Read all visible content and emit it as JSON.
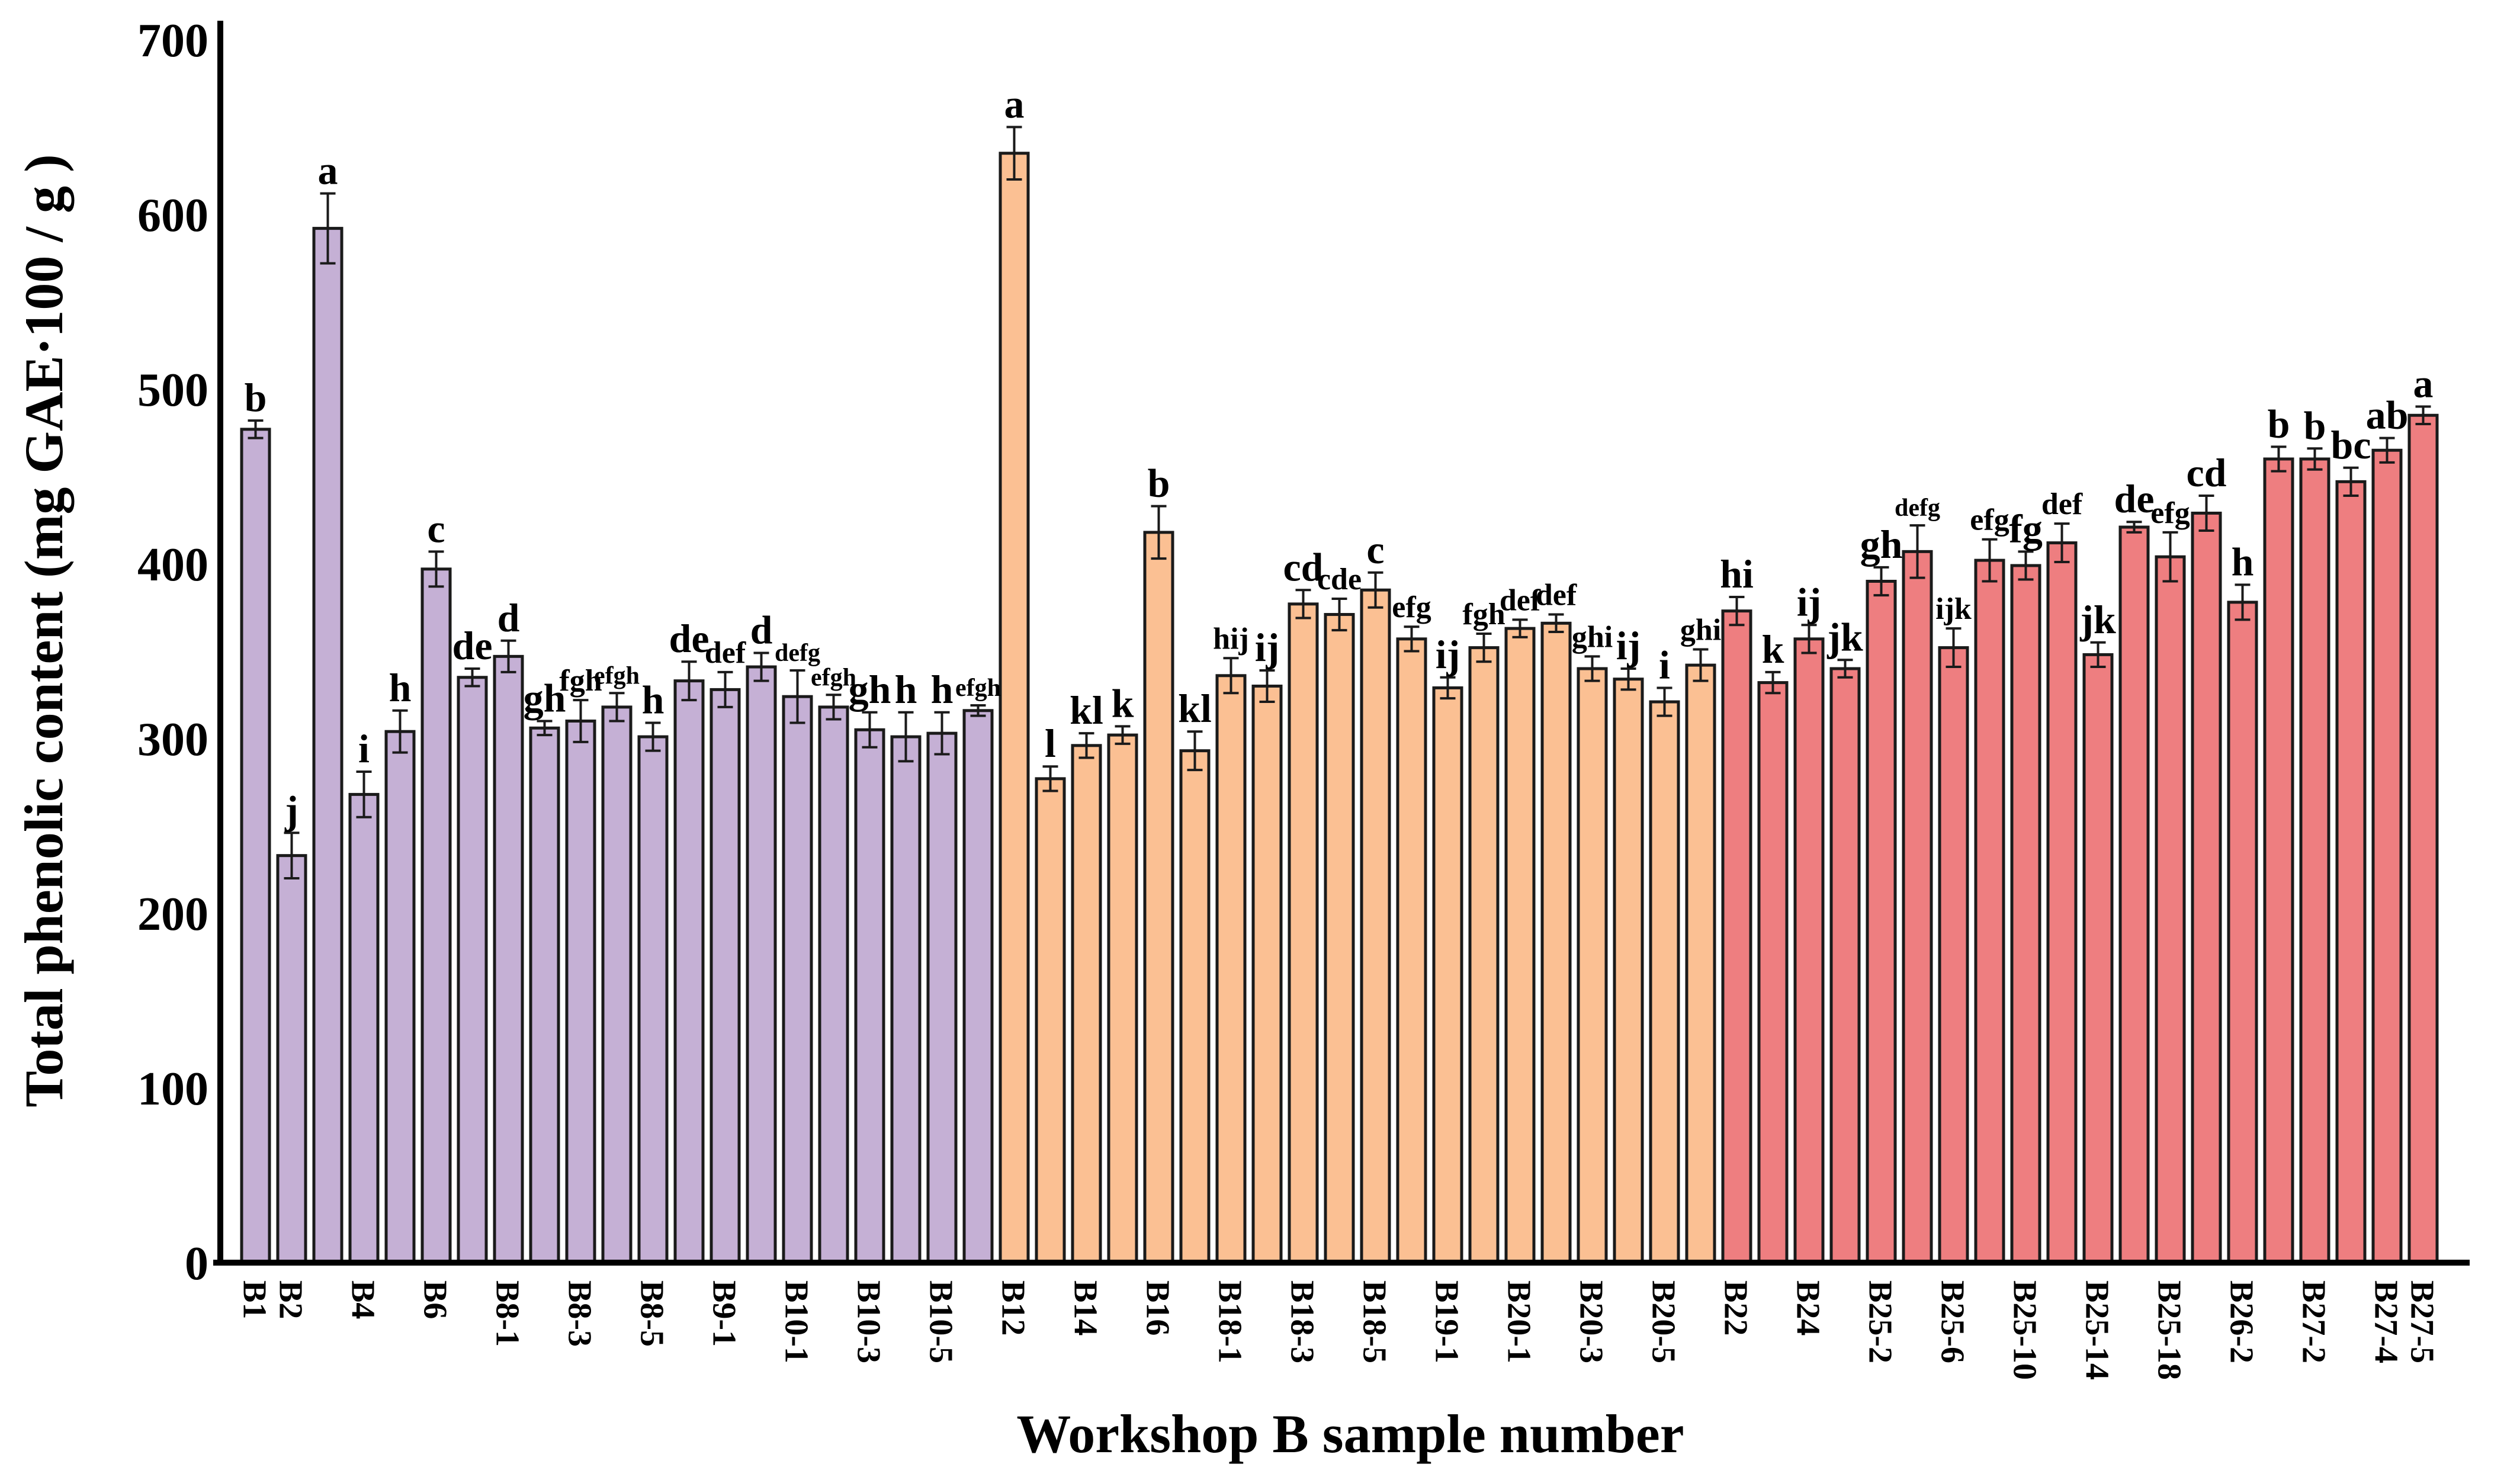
{
  "chart_data": {
    "type": "bar",
    "title": "",
    "xlabel": "Workshop B sample number",
    "ylabel": "Total phenolic content (mg GAE·100 / g )",
    "ylim": [
      0,
      700
    ],
    "y_ticks": [
      0,
      100,
      200,
      300,
      400,
      500,
      600,
      700
    ],
    "grid": false,
    "legend": "none",
    "axis_color": "#000000",
    "bar_outline_color": "#1a1a1a",
    "error_bar_color": "#1a1a1a",
    "groups": [
      {
        "name": "workshop-b-group-1",
        "color": "#c5b0d5",
        "bars": [
          {
            "label": "B1",
            "value": 477,
            "error": 5,
            "letter": "b"
          },
          {
            "label": "B2",
            "value": 233,
            "error": 13,
            "letter": "j"
          },
          {
            "label": "",
            "value": 592,
            "error": 20,
            "letter": "a"
          },
          {
            "label": "B4",
            "value": 268,
            "error": 13,
            "letter": "i"
          },
          {
            "label": "",
            "value": 304,
            "error": 12,
            "letter": "h"
          },
          {
            "label": "B6",
            "value": 397,
            "error": 10,
            "letter": "c"
          },
          {
            "label": "",
            "value": 335,
            "error": 5,
            "letter": "de"
          },
          {
            "label": "B8-1",
            "value": 347,
            "error": 9,
            "letter": "d"
          },
          {
            "label": "",
            "value": 306,
            "error": 4,
            "letter": "gh"
          },
          {
            "label": "B8-3",
            "value": 310,
            "error": 12,
            "letter": "fgh"
          },
          {
            "label": "",
            "value": 318,
            "error": 8,
            "letter": "efgh"
          },
          {
            "label": "B8-5",
            "value": 301,
            "error": 8,
            "letter": "h"
          },
          {
            "label": "",
            "value": 333,
            "error": 11,
            "letter": "de"
          },
          {
            "label": "B9-1",
            "value": 328,
            "error": 10,
            "letter": "def"
          },
          {
            "label": "",
            "value": 341,
            "error": 8,
            "letter": "d"
          },
          {
            "label": "B10-1",
            "value": 324,
            "error": 15,
            "letter": "defg"
          },
          {
            "label": "",
            "value": 318,
            "error": 7,
            "letter": "efgh"
          },
          {
            "label": "B10-3",
            "value": 305,
            "error": 10,
            "letter": "gh"
          },
          {
            "label": "",
            "value": 301,
            "error": 14,
            "letter": "h"
          },
          {
            "label": "B10-5",
            "value": 303,
            "error": 12,
            "letter": "h"
          },
          {
            "label": "",
            "value": 316,
            "error": 3,
            "letter": "efgh"
          }
        ]
      },
      {
        "name": "workshop-b-group-2",
        "color": "#fbc093",
        "bars": [
          {
            "label": "B12",
            "value": 635,
            "error": 15,
            "letter": "a"
          },
          {
            "label": "",
            "value": 277,
            "error": 7,
            "letter": "l"
          },
          {
            "label": "B14",
            "value": 296,
            "error": 7,
            "letter": "kl"
          },
          {
            "label": "",
            "value": 302,
            "error": 5,
            "letter": "k"
          },
          {
            "label": "B16",
            "value": 418,
            "error": 15,
            "letter": "b"
          },
          {
            "label": "",
            "value": 293,
            "error": 11,
            "letter": "kl"
          },
          {
            "label": "B18-1",
            "value": 336,
            "error": 10,
            "letter": "hij"
          },
          {
            "label": "",
            "value": 330,
            "error": 9,
            "letter": "ij"
          },
          {
            "label": "B18-3",
            "value": 377,
            "error": 8,
            "letter": "cd"
          },
          {
            "label": "",
            "value": 371,
            "error": 9,
            "letter": "cde"
          },
          {
            "label": "B18-5",
            "value": 385,
            "error": 10,
            "letter": "c"
          },
          {
            "label": "",
            "value": 357,
            "error": 7,
            "letter": "efg"
          },
          {
            "label": "B19-1",
            "value": 329,
            "error": 6,
            "letter": "ij"
          },
          {
            "label": "",
            "value": 352,
            "error": 8,
            "letter": "fgh"
          },
          {
            "label": "B20-1",
            "value": 363,
            "error": 5,
            "letter": "def"
          },
          {
            "label": "",
            "value": 366,
            "error": 5,
            "letter": "def"
          },
          {
            "label": "B20-3",
            "value": 340,
            "error": 7,
            "letter": "ghi"
          },
          {
            "label": "",
            "value": 334,
            "error": 6,
            "letter": "ij"
          },
          {
            "label": "B20-5",
            "value": 321,
            "error": 8,
            "letter": "i"
          },
          {
            "label": "",
            "value": 342,
            "error": 9,
            "letter": "ghi"
          }
        ]
      },
      {
        "name": "workshop-b-group-3",
        "color": "#ee7e80",
        "bars": [
          {
            "label": "B22",
            "value": 373,
            "error": 8,
            "letter": "hi"
          },
          {
            "label": "",
            "value": 332,
            "error": 6,
            "letter": "k"
          },
          {
            "label": "B24",
            "value": 357,
            "error": 8,
            "letter": "ij"
          },
          {
            "label": "",
            "value": 340,
            "error": 5,
            "letter": "jk"
          },
          {
            "label": "B25-2",
            "value": 390,
            "error": 8,
            "letter": "gh"
          },
          {
            "label": "",
            "value": 407,
            "error": 15,
            "letter": "defg"
          },
          {
            "label": "B25-6",
            "value": 352,
            "error": 11,
            "letter": "ijk"
          },
          {
            "label": "",
            "value": 402,
            "error": 12,
            "letter": "efg"
          },
          {
            "label": "B25-10",
            "value": 399,
            "error": 8,
            "letter": "fg"
          },
          {
            "label": "",
            "value": 412,
            "error": 11,
            "letter": "def"
          },
          {
            "label": "B25-14",
            "value": 348,
            "error": 7,
            "letter": "jk"
          },
          {
            "label": "",
            "value": 421,
            "error": 3,
            "letter": "de"
          },
          {
            "label": "B25-18",
            "value": 404,
            "error": 14,
            "letter": "efg"
          },
          {
            "label": "",
            "value": 429,
            "error": 10,
            "letter": "cd"
          },
          {
            "label": "B26-2",
            "value": 378,
            "error": 10,
            "letter": "h"
          },
          {
            "label": "",
            "value": 460,
            "error": 7,
            "letter": "b"
          },
          {
            "label": "B27-2",
            "value": 460,
            "error": 6,
            "letter": "b"
          },
          {
            "label": "",
            "value": 447,
            "error": 8,
            "letter": "bc"
          },
          {
            "label": "B27-4",
            "value": 465,
            "error": 7,
            "letter": "ab"
          },
          {
            "label": "B27-5",
            "value": 485,
            "error": 5,
            "letter": "a"
          }
        ]
      }
    ]
  }
}
